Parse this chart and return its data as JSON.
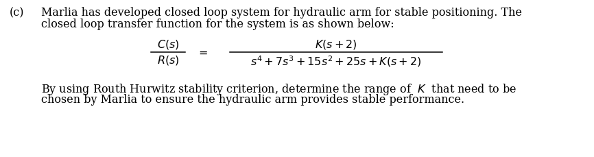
{
  "label_c": "(c)",
  "para1_line1": "Marlia has developed closed loop system for hydraulic arm for stable positioning. The",
  "para1_line2": "closed loop transfer function for the system is as shown below:",
  "para2_line1": "By using Routh Hurwitz stability criterion, determine the range of  $K$  that need to be",
  "para2_line2": "chosen by Marlia to ensure the hydraulic arm provides stable performance.",
  "lhs_top": "$C(s)$",
  "lhs_bot": "$R(s)$",
  "rhs_top": "$K(s+2)$",
  "rhs_bot": "$s^4+7s^3+15s^2+25s+K(s+2)$",
  "font_size": 11.5,
  "bg_color": "#ffffff",
  "text_color": "#000000",
  "figw": 8.66,
  "figh": 2.3,
  "dpi": 100
}
